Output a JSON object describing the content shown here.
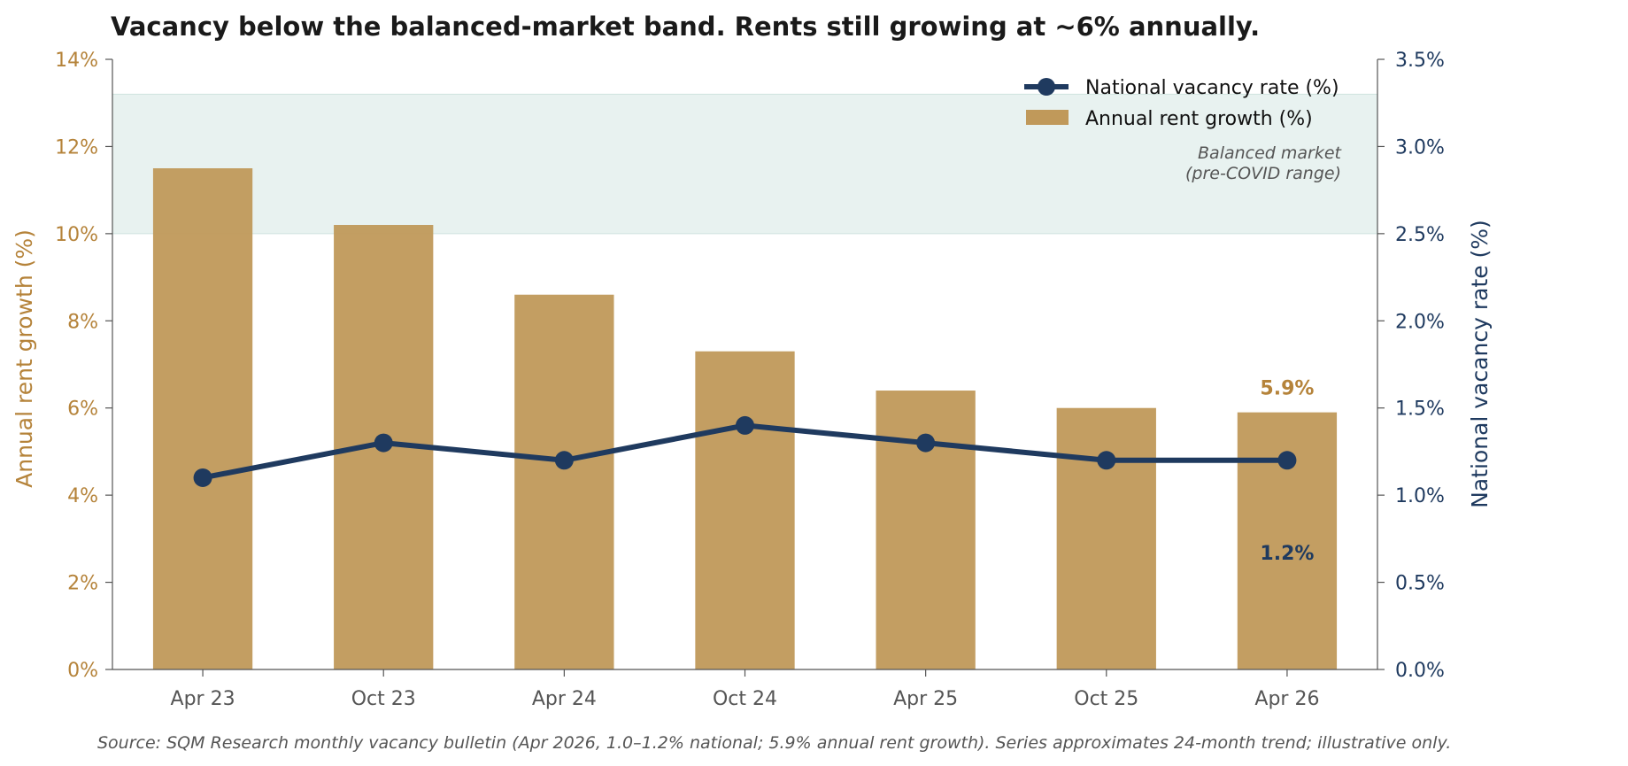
{
  "chart_data": {
    "type": "bar",
    "title": "Vacancy below the balanced-market band. Rents still growing at ~6% annually.",
    "categories": [
      "Apr 23",
      "Oct 23",
      "Apr 24",
      "Oct 24",
      "Apr 25",
      "Oct 25",
      "Apr 26"
    ],
    "series": [
      {
        "name": "Annual rent growth (%)",
        "type": "bar",
        "axis": "left",
        "color": "#c0995a",
        "values": [
          11.5,
          10.2,
          8.6,
          7.3,
          6.4,
          6.0,
          5.9
        ]
      },
      {
        "name": "National vacancy rate (%)",
        "type": "line",
        "axis": "right",
        "color": "#1f3a5f",
        "values": [
          1.1,
          1.3,
          1.2,
          1.4,
          1.3,
          1.2,
          1.2
        ]
      }
    ],
    "y_left": {
      "label": "Annual rent growth (%)",
      "range": [
        0,
        14
      ],
      "ticks": [
        0,
        2,
        4,
        6,
        8,
        10,
        12,
        14
      ],
      "tick_labels": [
        "0%",
        "2%",
        "4%",
        "6%",
        "8%",
        "10%",
        "12%",
        "14%"
      ],
      "color": "#b5833a"
    },
    "y_right": {
      "label": "National vacancy rate (%)",
      "range": [
        0,
        3.5
      ],
      "ticks": [
        0,
        0.5,
        1.0,
        1.5,
        2.0,
        2.5,
        3.0,
        3.5
      ],
      "tick_labels": [
        "0.0%",
        "0.5%",
        "1.0%",
        "1.5%",
        "2.0%",
        "2.5%",
        "3.0%",
        "3.5%"
      ],
      "color": "#1f3a5f"
    },
    "band": {
      "axis": "right",
      "range": [
        2.5,
        3.3
      ],
      "label_line1": "Balanced market",
      "label_line2": "(pre-COVID range)",
      "color": "#dcebe8"
    },
    "end_labels": {
      "rent": "5.9%",
      "vacancy": "1.2%"
    },
    "legend": {
      "placement": "top-right"
    },
    "grid": false,
    "source": "Source: SQM Research monthly vacancy bulletin (Apr 2026, 1.0–1.2% national; 5.9% annual rent growth). Series approximates 24-month trend; illustrative only."
  }
}
